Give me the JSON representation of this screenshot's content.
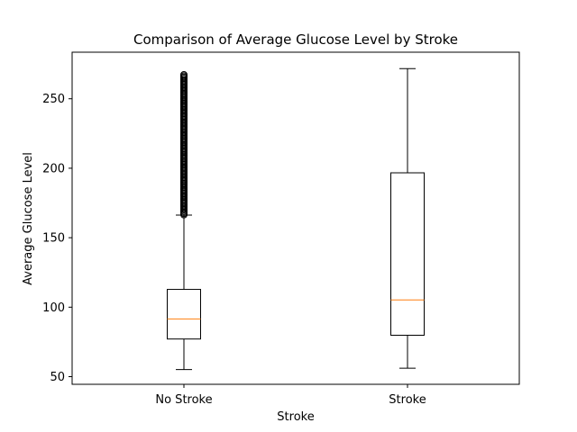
{
  "chart_data": {
    "type": "boxplot",
    "title": "Comparison of Average Glucose Level by Stroke",
    "xlabel": "Stroke",
    "ylabel": "Average Glucose Level",
    "categories": [
      "No Stroke",
      "Stroke"
    ],
    "ylim": [
      44.5,
      283.5
    ],
    "yticks": [
      50,
      100,
      150,
      200,
      250
    ],
    "grid": false,
    "legend": "none",
    "colors": {
      "box": "#000000",
      "median": "#ff7f0e",
      "outlier": "#000000"
    },
    "boxes": [
      {
        "category": "No Stroke",
        "whisker_low": 55.1,
        "q1": 77.1,
        "median": 91.5,
        "q3": 112.8,
        "whisker_high": 166.3,
        "outliers_range": [
          166.5,
          267.8
        ]
      },
      {
        "category": "Stroke",
        "whisker_low": 56.1,
        "q1": 79.8,
        "median": 105.2,
        "q3": 196.7,
        "whisker_high": 271.7,
        "outliers_range": []
      }
    ]
  }
}
